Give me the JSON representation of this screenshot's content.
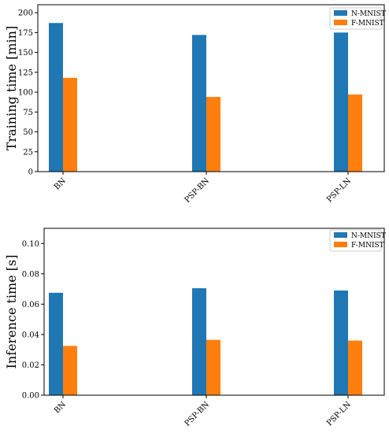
{
  "chart_data": [
    {
      "type": "bar",
      "categories": [
        "BN",
        "PSP-BN",
        "PSP-LN"
      ],
      "series": [
        {
          "name": "N-MNIST",
          "values": [
            187,
            172,
            175
          ],
          "color": "#1f77b4"
        },
        {
          "name": "F-MNIST",
          "values": [
            118,
            94,
            97
          ],
          "color": "#ff7f0e"
        }
      ],
      "xlabel": "",
      "ylabel": "Training time [min]",
      "ylim": [
        0,
        210
      ],
      "yticks": [
        "0",
        "25",
        "50",
        "75",
        "100",
        "125",
        "150",
        "175",
        "200"
      ],
      "legend": "top-right",
      "grid": false
    },
    {
      "type": "bar",
      "categories": [
        "BN",
        "PSP-BN",
        "PSP-LN"
      ],
      "series": [
        {
          "name": "N-MNIST",
          "values": [
            0.0675,
            0.0705,
            0.069
          ],
          "color": "#1f77b4"
        },
        {
          "name": "F-MNIST",
          "values": [
            0.0325,
            0.0365,
            0.036
          ],
          "color": "#ff7f0e"
        }
      ],
      "xlabel": "",
      "ylabel": "Inference time [s]",
      "ylim": [
        0,
        0.11
      ],
      "yticks": [
        "0.00",
        "0.02",
        "0.04",
        "0.06",
        "0.08",
        "0.10"
      ],
      "legend": "top-right",
      "grid": false
    }
  ]
}
